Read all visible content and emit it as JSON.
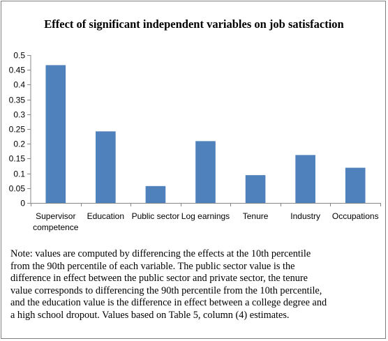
{
  "chart_data": {
    "type": "bar",
    "title": "Effect of significant independent variables on job satisfaction",
    "categories": [
      "Supervisor competence",
      "Education",
      "Public sector",
      "Log earnings",
      "Tenure",
      "Industry",
      "Occupations"
    ],
    "category_lines": [
      [
        "Supervisor",
        "competence"
      ],
      [
        "Education"
      ],
      [
        "Public sector"
      ],
      [
        "Log earnings"
      ],
      [
        "Tenure"
      ],
      [
        "Industry"
      ],
      [
        "Occupations"
      ]
    ],
    "values": [
      0.466,
      0.242,
      0.057,
      0.209,
      0.094,
      0.162,
      0.119
    ],
    "ylim": [
      0,
      0.5
    ],
    "yticks": [
      "0",
      "0.05",
      "0.1",
      "0.15",
      "0.2",
      "0.25",
      "0.3",
      "0.35",
      "0.4",
      "0.45",
      "0.5"
    ],
    "ytick_values": [
      0,
      0.05,
      0.1,
      0.15,
      0.2,
      0.25,
      0.3,
      0.35,
      0.4,
      0.45,
      0.5
    ],
    "grid": false,
    "legend": "none",
    "bar_color": "#4f81bd"
  },
  "note": "Note: values are computed by differencing the effects at the 10th percentile\nfrom the 90th percentile of each variable.  The public sector value is the\ndifference in effect between the public sector and private sector, the tenure\nvalue corresponds to differencing  the 90th percentile from the 10th percentile,\nand the education value is the difference in effect between a college degree and\na high school dropout.  Values based on Table 5, column (4) estimates."
}
